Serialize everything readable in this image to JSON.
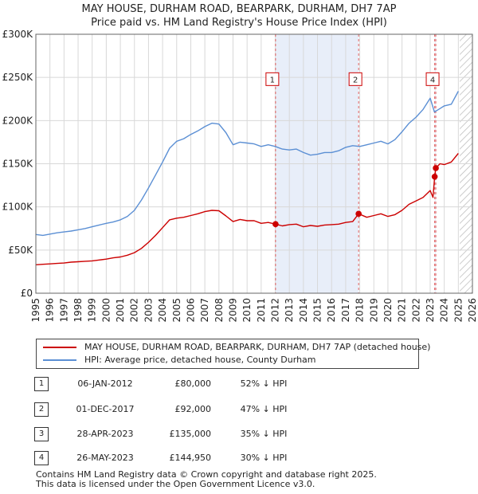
{
  "title_line1": "MAY HOUSE, DURHAM ROAD, BEARPARK, DURHAM, DH7 7AP",
  "title_line2": "Price paid vs. HM Land Registry's House Price Index (HPI)",
  "colors": {
    "price": "#cc0000",
    "hpi": "#5b8fd4",
    "shade": "#e8eef9",
    "marker_line": "#e06060",
    "grid": "#d8d8d8"
  },
  "chart_data": {
    "type": "line",
    "title": "MAY HOUSE, DURHAM ROAD, BEARPARK, DURHAM, DH7 7AP",
    "subtitle": "Price paid vs. HM Land Registry's House Price Index (HPI)",
    "xlabel": "",
    "ylabel": "",
    "xlim": [
      1995,
      2026
    ],
    "ylim": [
      0,
      300000
    ],
    "x_ticks": [
      "1995",
      "1996",
      "1997",
      "1998",
      "1999",
      "2000",
      "2001",
      "2002",
      "2003",
      "2004",
      "2005",
      "2006",
      "2007",
      "2008",
      "2009",
      "2010",
      "2011",
      "2012",
      "2013",
      "2014",
      "2015",
      "2016",
      "2017",
      "2018",
      "2019",
      "2020",
      "2021",
      "2022",
      "2023",
      "2024",
      "2025",
      "2026"
    ],
    "y_ticks": [
      {
        "value": 0,
        "label": "£0"
      },
      {
        "value": 50000,
        "label": "£50K"
      },
      {
        "value": 100000,
        "label": "£100K"
      },
      {
        "value": 150000,
        "label": "£150K"
      },
      {
        "value": 200000,
        "label": "£200K"
      },
      {
        "value": 250000,
        "label": "£250K"
      },
      {
        "value": 300000,
        "label": "£300K"
      }
    ],
    "grid": true,
    "shaded_periods": [
      {
        "from": 2012.02,
        "to": 2017.92
      },
      {
        "from": 2023.32,
        "to": 2023.4
      }
    ],
    "future_hatch_from": 2025.1,
    "series": [
      {
        "name": "HPI: Average price, detached house, County Durham",
        "x": [
          1995,
          1995.5,
          1996,
          1996.5,
          1997,
          1997.5,
          1998,
          1998.5,
          1999,
          1999.5,
          2000,
          2000.5,
          2001,
          2001.5,
          2002,
          2002.5,
          2003,
          2003.5,
          2004,
          2004.5,
          2005,
          2005.5,
          2006,
          2006.5,
          2007,
          2007.5,
          2008,
          2008.5,
          2009,
          2009.5,
          2010,
          2010.5,
          2011,
          2011.5,
          2012,
          2012.5,
          2013,
          2013.5,
          2014,
          2014.5,
          2015,
          2015.5,
          2016,
          2016.5,
          2017,
          2017.5,
          2018,
          2018.5,
          2019,
          2019.5,
          2020,
          2020.5,
          2021,
          2021.5,
          2022,
          2022.5,
          2023,
          2023.3,
          2023.6,
          2024,
          2024.5,
          2025
        ],
        "values": [
          68000,
          67000,
          68500,
          70000,
          71000,
          72000,
          73500,
          75000,
          77000,
          79000,
          81000,
          82500,
          85000,
          89000,
          96000,
          108000,
          122000,
          137000,
          152000,
          168000,
          176000,
          179000,
          184000,
          188000,
          193000,
          197000,
          196000,
          186000,
          172000,
          175000,
          174000,
          173000,
          170000,
          172000,
          170000,
          167000,
          166000,
          167000,
          163000,
          160000,
          161000,
          163000,
          163000,
          165000,
          169000,
          171000,
          170000,
          172000,
          174000,
          176000,
          173000,
          178000,
          187000,
          197000,
          204000,
          213000,
          226000,
          210000,
          213000,
          217000,
          219000,
          234000
        ]
      },
      {
        "name": "MAY HOUSE, DURHAM ROAD, BEARPARK, DURHAM, DH7 7AP (detached house)",
        "x": [
          1995,
          1995.5,
          1996,
          1996.5,
          1997,
          1997.5,
          1998,
          1998.5,
          1999,
          1999.5,
          2000,
          2000.5,
          2001,
          2001.5,
          2002,
          2002.5,
          2003,
          2003.5,
          2004,
          2004.5,
          2005,
          2005.5,
          2006,
          2006.5,
          2007,
          2007.5,
          2008,
          2008.5,
          2009,
          2009.5,
          2010,
          2010.5,
          2011,
          2011.5,
          2012.02,
          2012.5,
          2013,
          2013.5,
          2014,
          2014.5,
          2015,
          2015.5,
          2016,
          2016.5,
          2017,
          2017.5,
          2017.92,
          2018.5,
          2019,
          2019.5,
          2020,
          2020.5,
          2021,
          2021.5,
          2022,
          2022.5,
          2023,
          2023.2,
          2023.32,
          2023.4,
          2023.7,
          2024,
          2024.5,
          2025
        ],
        "values": [
          33000,
          33500,
          34000,
          34500,
          35000,
          36000,
          36500,
          37000,
          37500,
          38500,
          39500,
          41000,
          42000,
          44000,
          47000,
          52000,
          59000,
          67000,
          76000,
          85000,
          87000,
          88000,
          90000,
          92000,
          94500,
          96000,
          95500,
          89500,
          83000,
          85500,
          84000,
          84000,
          81000,
          82000,
          80000,
          78000,
          79500,
          80000,
          77000,
          78500,
          77500,
          79000,
          79500,
          80000,
          82000,
          83000,
          92000,
          88000,
          90000,
          92000,
          89000,
          91000,
          96000,
          103000,
          107000,
          111000,
          119000,
          111000,
          135000,
          144950,
          150000,
          149000,
          152000,
          162000
        ]
      }
    ],
    "sales": [
      {
        "num": "1",
        "x": 2012.02,
        "value": 80000
      },
      {
        "num": "2",
        "x": 2017.92,
        "value": 92000
      },
      {
        "num": "3",
        "x": 2023.32,
        "value": 135000
      },
      {
        "num": "4",
        "x": 2023.4,
        "value": 144950
      }
    ],
    "marker_labels": [
      {
        "num": "1",
        "x": 2012.02,
        "label_y": 248000
      },
      {
        "num": "2",
        "x": 2017.92,
        "label_y": 248000
      },
      {
        "num": "4",
        "x": 2023.4,
        "label_y": 248000
      }
    ]
  },
  "legend": {
    "price_label": "MAY HOUSE, DURHAM ROAD, BEARPARK, DURHAM, DH7 7AP (detached house)",
    "hpi_label": "HPI: Average price, detached house, County Durham"
  },
  "transactions": [
    {
      "num": "1",
      "date": "06-JAN-2012",
      "price": "£80,000",
      "hpi": "52% ↓ HPI"
    },
    {
      "num": "2",
      "date": "01-DEC-2017",
      "price": "£92,000",
      "hpi": "47% ↓ HPI"
    },
    {
      "num": "3",
      "date": "28-APR-2023",
      "price": "£135,000",
      "hpi": "35% ↓ HPI"
    },
    {
      "num": "4",
      "date": "26-MAY-2023",
      "price": "£144,950",
      "hpi": "30% ↓ HPI"
    }
  ],
  "footer_line1": "Contains HM Land Registry data © Crown copyright and database right 2025.",
  "footer_line2": "This data is licensed under the Open Government Licence v3.0."
}
